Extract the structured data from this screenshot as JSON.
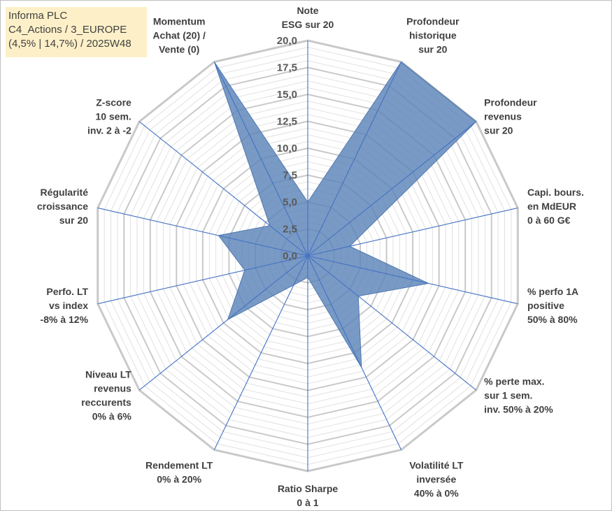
{
  "title": {
    "line1": "Informa PLC",
    "line2": "C4_Actions / 3_EUROPE",
    "line3": "(4,5% | 14,7%) / 2025W48"
  },
  "chart_data": {
    "type": "radar",
    "rmin": 0,
    "rmax": 20,
    "ticks": [
      "0,0",
      "2,5",
      "5,0",
      "7,5",
      "10,0",
      "12,5",
      "15,0",
      "17,5",
      "20,0"
    ],
    "axes": [
      {
        "lines": [
          "Note",
          "ESG sur 20"
        ]
      },
      {
        "lines": [
          "Profondeur",
          "historique",
          "sur 20"
        ]
      },
      {
        "lines": [
          "Profondeur",
          "revenus",
          "sur 20"
        ]
      },
      {
        "lines": [
          "Capi. bours.",
          "en MdEUR",
          "0 à 60 G€"
        ]
      },
      {
        "lines": [
          "% perfo 1A",
          "positive",
          "50% à 80%"
        ]
      },
      {
        "lines": [
          "% perte max.",
          "sur 1 sem.",
          "inv. 50% à 20%"
        ]
      },
      {
        "lines": [
          "Volatilité LT",
          "inversée",
          "40% à 0%"
        ]
      },
      {
        "lines": [
          "Ratio Sharpe",
          "0 à 1"
        ]
      },
      {
        "lines": [
          "Rendement LT",
          "0% à 20%"
        ]
      },
      {
        "lines": [
          "Niveau LT",
          "revenus",
          "reccurents",
          "0% à 6%"
        ]
      },
      {
        "lines": [
          "Perfo. LT",
          "vs index",
          "-8% à 12%"
        ]
      },
      {
        "lines": [
          "Régularité",
          "croissance",
          "sur 20"
        ]
      },
      {
        "lines": [
          "Z-score",
          "10 sem.",
          "inv. 2 à -2"
        ]
      },
      {
        "lines": [
          "Momentum",
          "Achat (20) /",
          "Vente (0)"
        ]
      }
    ],
    "series": [
      {
        "name": "Informa PLC",
        "color": "#5b84b8",
        "values": [
          5.0,
          20.0,
          20.0,
          4.0,
          11.5,
          6.0,
          11.5,
          2.0,
          3.0,
          9.5,
          6.0,
          8.5,
          4.5,
          20.0
        ]
      }
    ],
    "colors": {
      "grid": "#c9c9c9",
      "ring": "#d9d9d9",
      "spoke": "#4472c4",
      "fill": "#5b84b8"
    }
  }
}
